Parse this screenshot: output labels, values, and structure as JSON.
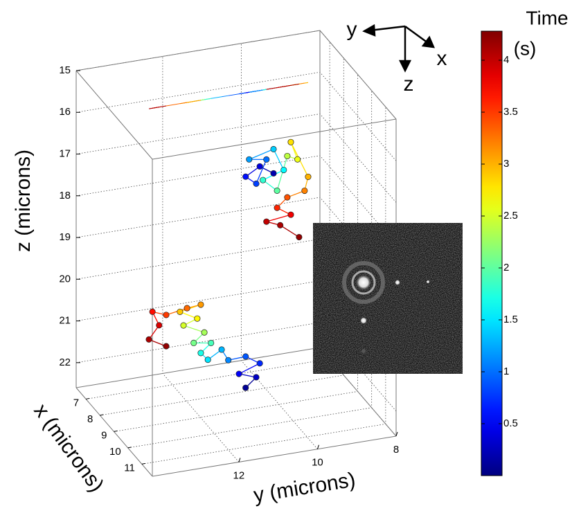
{
  "chart_data": {
    "type": "scatter3d",
    "zlabel": "z (microns)",
    "xlabel": "x (microns)",
    "ylabel": "y (microns)",
    "xlim": [
      6.3,
      11.75
    ],
    "ylim": [
      8,
      14.2
    ],
    "zlim": [
      15,
      22.6
    ],
    "z_reversed": true,
    "xticks": [
      7,
      8,
      9,
      10,
      11
    ],
    "yticks": [
      8,
      10,
      12
    ],
    "zticks": [
      15,
      16,
      17,
      18,
      19,
      20,
      21,
      22
    ],
    "grid": true,
    "projection_plane": "top",
    "colormap": "jet",
    "clim": [
      0,
      4.28
    ],
    "cticks": [
      0.5,
      1,
      1.5,
      2,
      2.5,
      3,
      3.5,
      4
    ],
    "colorbar_label": [
      "Time",
      "(s)"
    ],
    "tracks": [
      {
        "x": [
          9,
          9,
          9,
          9,
          9,
          9,
          9,
          9,
          9,
          9,
          9,
          9,
          9,
          9,
          9,
          9,
          9,
          9,
          9,
          9,
          9,
          9
        ],
        "y": [
          10.85,
          10.58,
          11.02,
          10.49,
          10.85,
          11.29,
          11.46,
          11.81,
          11.99,
          11.73,
          12.17,
          11.9,
          12.43,
          12.08,
          12.52,
          11.99,
          12.34,
          12.87,
          13.22,
          13.05,
          13.31,
          12.87
        ],
        "z": [
          22.07,
          21.86,
          21.71,
          21.54,
          21.32,
          21.34,
          21.06,
          21.25,
          21.06,
          20.86,
          20.79,
          20.58,
          20.33,
          20.22,
          19.99,
          19.9,
          19.93,
          20.01,
          19.88,
          20.23,
          20.53,
          20.76
        ],
        "t": [
          0.1,
          0.3,
          0.5,
          0.7,
          0.9,
          1.1,
          1.3,
          1.5,
          1.7,
          1.9,
          2.1,
          2.3,
          2.5,
          2.7,
          2.9,
          3.1,
          3.3,
          3.5,
          3.7,
          3.9,
          4.1,
          4.2
        ]
      },
      {
        "x": [
          9,
          9,
          9,
          9,
          9,
          9,
          9,
          9,
          9,
          9,
          9,
          9,
          9,
          9,
          9,
          9,
          9,
          9,
          9,
          9,
          9
        ],
        "y": [
          10.14,
          10.49,
          10.85,
          10.58,
          10.32,
          10.76,
          10.14,
          9.88,
          10.41,
          10.05,
          9.79,
          9.53,
          9.7,
          9.26,
          9.35,
          9.79,
          10.05,
          9.7,
          10.32,
          9.97,
          9.49
        ],
        "z": [
          17.04,
          16.82,
          17.01,
          17.22,
          16.68,
          16.61,
          16.46,
          17.0,
          17.16,
          17.47,
          16.68,
          16.8,
          16.36,
          17.26,
          17.58,
          17.67,
          17.88,
          18.1,
          18.17,
          18.31,
          18.67
        ],
        "t": [
          0.2,
          0.4,
          0.6,
          0.8,
          1.0,
          1.2,
          1.4,
          1.6,
          1.8,
          2.0,
          2.4,
          2.6,
          2.8,
          3.0,
          3.2,
          3.4,
          3.6,
          3.8,
          4.0,
          4.1,
          4.2
        ]
      }
    ]
  },
  "axes_glyph": {
    "labels": [
      "y",
      "x",
      "z"
    ]
  }
}
